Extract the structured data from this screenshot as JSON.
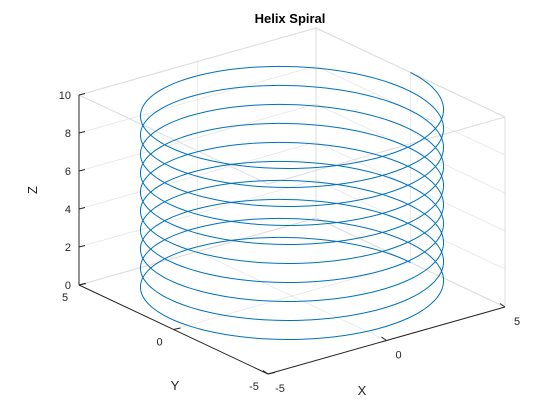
{
  "chart_data": {
    "type": "line",
    "projection": "3d",
    "title": "Helix Spiral",
    "xlabel": "X",
    "ylabel": "Y",
    "zlabel": "Z",
    "xlim": [
      -5,
      5
    ],
    "ylim": [
      -5,
      5
    ],
    "zlim": [
      0,
      10
    ],
    "xticks": [
      -5,
      0,
      5
    ],
    "yticks": [
      -5,
      0,
      5
    ],
    "zticks": [
      0,
      2,
      4,
      6,
      8,
      10
    ],
    "grid": true,
    "series": [
      {
        "radius": 5,
        "z_start": 0,
        "z_end": 10,
        "turns": 10,
        "color": "#0072BD"
      }
    ]
  }
}
